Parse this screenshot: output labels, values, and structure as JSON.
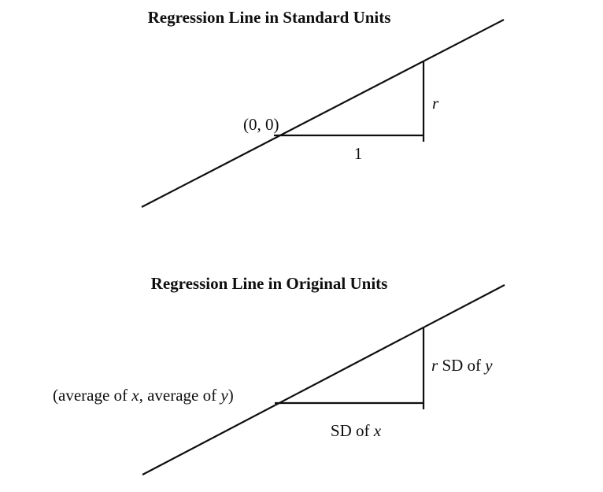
{
  "canvas": {
    "background": "#ffffff",
    "ink": "#0f0f0f"
  },
  "diagrams": {
    "standard": {
      "title": "Regression Line in Standard Units",
      "point_label": [
        {
          "t": "(0, 0)",
          "i": false
        }
      ],
      "run_label": [
        {
          "t": "1",
          "i": false
        }
      ],
      "rise_label": [
        {
          "t": "r",
          "i": true
        }
      ]
    },
    "original": {
      "title": "Regression Line in Original Units",
      "point_label": [
        {
          "t": "(average of ",
          "i": false
        },
        {
          "t": "x",
          "i": true
        },
        {
          "t": ", average of ",
          "i": false
        },
        {
          "t": "y",
          "i": true
        },
        {
          "t": ")",
          "i": false
        }
      ],
      "run_label": [
        {
          "t": "SD of ",
          "i": false
        },
        {
          "t": "x",
          "i": true
        }
      ],
      "rise_label": [
        {
          "t": "r",
          "i": true
        },
        {
          "t": " SD of ",
          "i": false
        },
        {
          "t": "y",
          "i": true
        }
      ]
    }
  }
}
